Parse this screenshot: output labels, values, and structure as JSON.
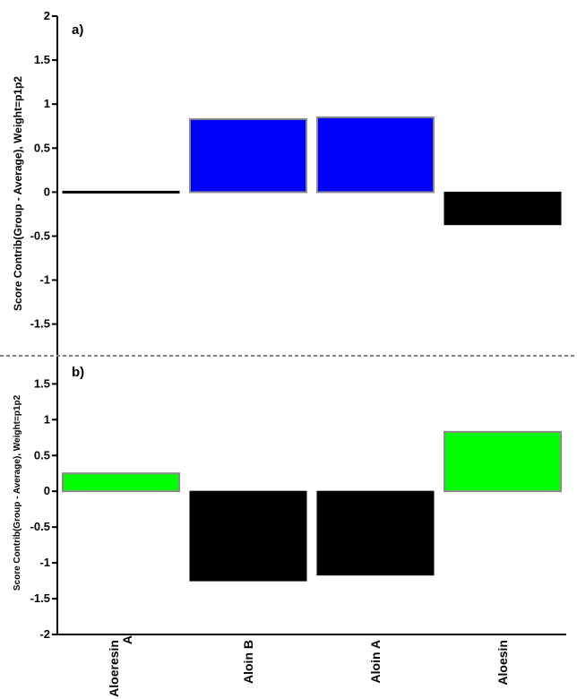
{
  "chart_data": [
    {
      "type": "bar",
      "panel_label": "a)",
      "ylabel": "Score Contrib(Group - Average), Weight=p1p2",
      "categories": [
        "Aloeresin A",
        "Aloin B",
        "Aloin A",
        "Aloesin"
      ],
      "values": [
        -0.02,
        0.83,
        0.85,
        -0.37
      ],
      "colors": [
        "#000000",
        "#0000ff",
        "#0000ff",
        "#000000"
      ],
      "ylim": [
        -1.85,
        2
      ],
      "yticks": [
        "2",
        "1.5",
        "1",
        "0.5",
        "0",
        "-0.5",
        "-1",
        "-1.5"
      ],
      "grid": false
    },
    {
      "type": "bar",
      "panel_label": "b)",
      "ylabel": "Score Contrib(Group - Average), Weight=p1p2",
      "categories": [
        "Aloeresin A",
        "Aloin B",
        "Aloin A",
        "Aloesin"
      ],
      "values": [
        0.25,
        -1.25,
        -1.17,
        0.83
      ],
      "colors": [
        "#00ff00",
        "#000000",
        "#000000",
        "#00ff00"
      ],
      "ylim": [
        -2,
        1.88
      ],
      "yticks": [
        "1.5",
        "1",
        "0.5",
        "0",
        "-0.5",
        "-1",
        "-1.5",
        "-2"
      ],
      "grid": false
    }
  ],
  "x_labels": [
    "Aloeresin\nA",
    "Aloin B",
    "Aloin A",
    "Aloesin"
  ]
}
